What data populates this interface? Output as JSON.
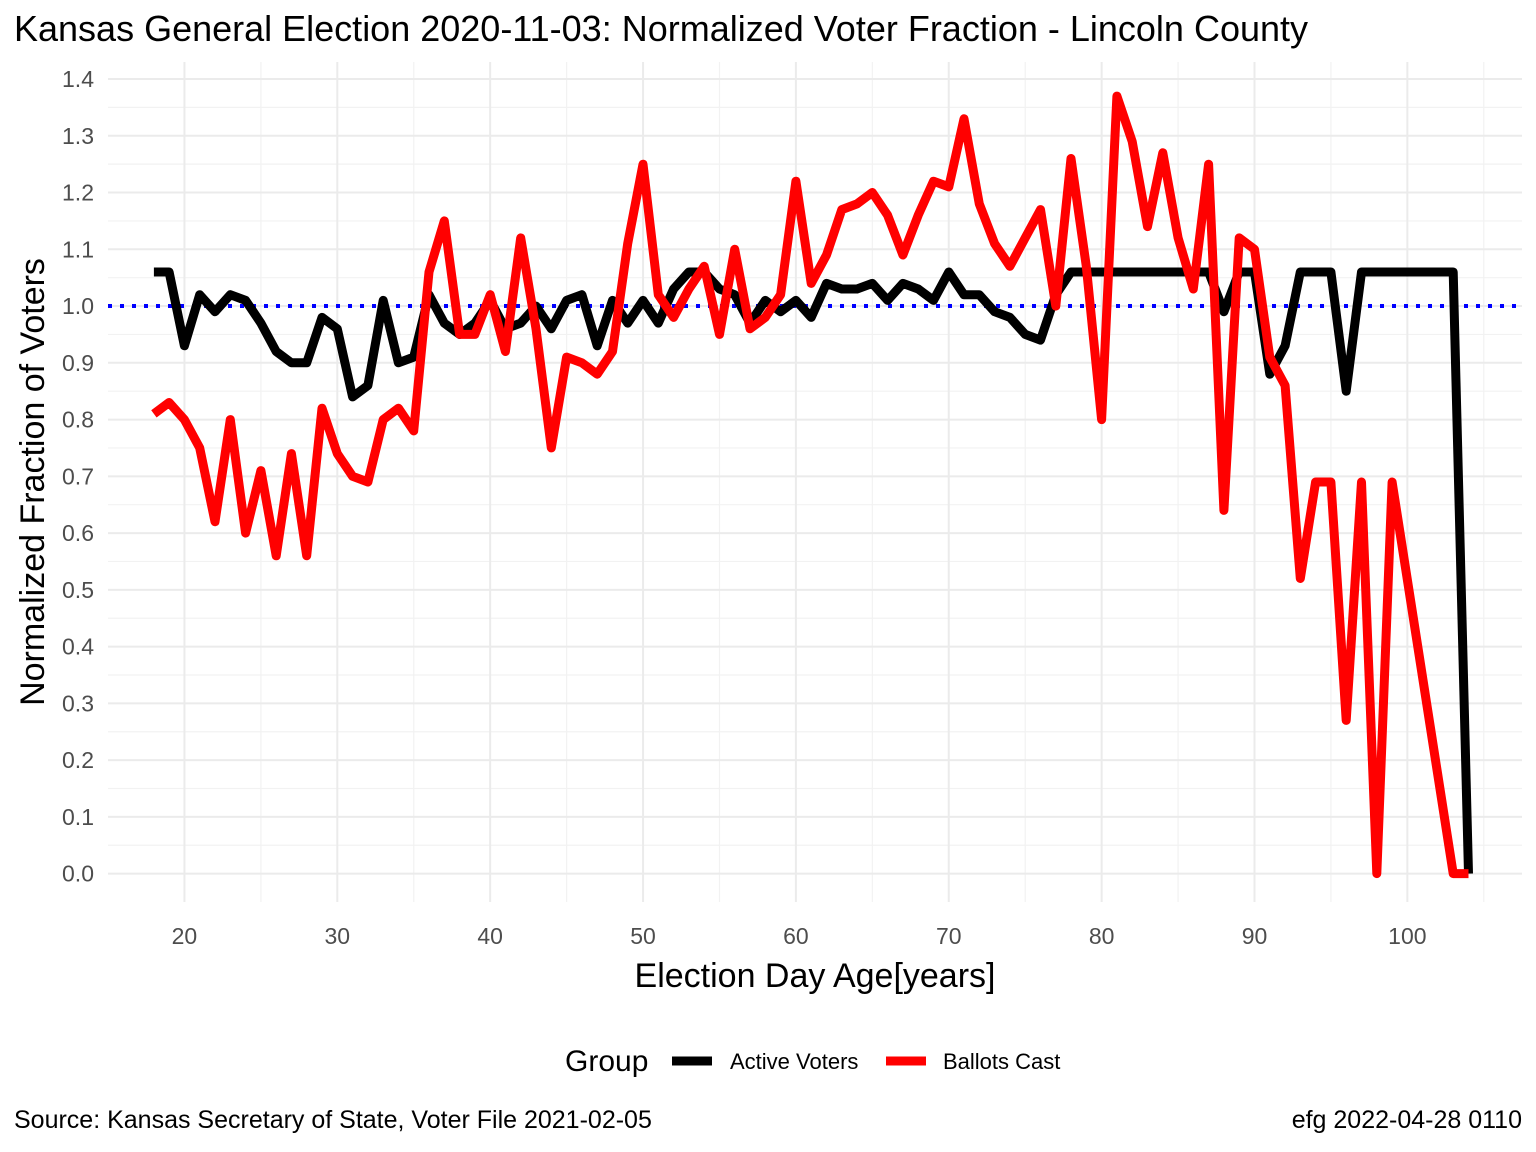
{
  "title": "Kansas General Election 2020-11-03:  Normalized Voter Fraction - Lincoln County",
  "caption_left": "Source:  Kansas Secretary of State, Voter File  2021-02-05",
  "caption_right": "efg 2022-04-28 0110",
  "chart_data": {
    "type": "line",
    "xlabel": "Election Day Age[years]",
    "ylabel": "Normalized Fraction of Voters",
    "xlim": [
      15,
      107.5
    ],
    "ylim": [
      -0.05,
      1.43
    ],
    "x_ticks": [
      20,
      30,
      40,
      50,
      60,
      70,
      80,
      90,
      100
    ],
    "y_ticks": [
      0.0,
      0.1,
      0.2,
      0.3,
      0.4,
      0.5,
      0.6,
      0.7,
      0.8,
      0.9,
      1.0,
      1.1,
      1.2,
      1.3,
      1.4
    ],
    "y_tick_labels": [
      "0.0",
      "0.1",
      "0.2",
      "0.3",
      "0.4",
      "0.5",
      "0.6",
      "0.7",
      "0.8",
      "0.9",
      "1.0",
      "1.1",
      "1.2",
      "1.3",
      "1.4"
    ],
    "grid": true,
    "reference_line": {
      "y": 1.0,
      "color": "#0000ff",
      "style": "dotted"
    },
    "legend": {
      "title": "Group",
      "position": "bottom"
    },
    "series": [
      {
        "name": "Active Voters",
        "color": "#000000",
        "x": [
          18,
          19,
          20,
          21,
          22,
          23,
          24,
          25,
          26,
          27,
          28,
          29,
          30,
          31,
          32,
          33,
          34,
          35,
          36,
          37,
          38,
          39,
          40,
          41,
          42,
          43,
          44,
          45,
          46,
          47,
          48,
          49,
          50,
          51,
          52,
          53,
          54,
          55,
          56,
          57,
          58,
          59,
          60,
          61,
          62,
          63,
          64,
          65,
          66,
          67,
          68,
          69,
          70,
          71,
          72,
          73,
          74,
          75,
          76,
          77,
          78,
          79,
          80,
          81,
          82,
          83,
          84,
          85,
          86,
          87,
          88,
          89,
          90,
          91,
          92,
          93,
          94,
          95,
          96,
          97,
          98,
          99,
          100,
          101,
          102,
          103,
          104
        ],
        "y": [
          1.06,
          1.06,
          0.93,
          1.02,
          0.99,
          1.02,
          1.01,
          0.97,
          0.92,
          0.9,
          0.9,
          0.98,
          0.96,
          0.84,
          0.86,
          1.01,
          0.9,
          0.91,
          1.02,
          0.97,
          0.95,
          0.97,
          1.01,
          0.96,
          0.97,
          1.0,
          0.96,
          1.01,
          1.02,
          0.93,
          1.01,
          0.97,
          1.01,
          0.97,
          1.03,
          1.06,
          1.06,
          1.03,
          1.02,
          0.97,
          1.01,
          0.99,
          1.01,
          0.98,
          1.04,
          1.03,
          1.03,
          1.04,
          1.01,
          1.04,
          1.03,
          1.01,
          1.06,
          1.02,
          1.02,
          0.99,
          0.98,
          0.95,
          0.94,
          1.02,
          1.06,
          1.06,
          1.06,
          1.06,
          1.06,
          1.06,
          1.06,
          1.06,
          1.06,
          1.06,
          0.99,
          1.06,
          1.06,
          0.88,
          0.93,
          1.06,
          1.06,
          1.06,
          0.85,
          1.06,
          1.06,
          1.06,
          1.06,
          1.06,
          1.06,
          1.06,
          0.0
        ]
      },
      {
        "name": "Ballots Cast",
        "color": "#ff0000",
        "x": [
          18,
          19,
          20,
          21,
          22,
          23,
          24,
          25,
          26,
          27,
          28,
          29,
          30,
          31,
          32,
          33,
          34,
          35,
          36,
          37,
          38,
          39,
          40,
          41,
          42,
          43,
          44,
          45,
          46,
          47,
          48,
          49,
          50,
          51,
          52,
          53,
          54,
          55,
          56,
          57,
          58,
          59,
          60,
          61,
          62,
          63,
          64,
          65,
          66,
          67,
          68,
          69,
          70,
          71,
          72,
          73,
          74,
          75,
          76,
          77,
          78,
          79,
          80,
          81,
          82,
          83,
          84,
          85,
          86,
          87,
          88,
          89,
          90,
          91,
          92,
          93,
          94,
          95,
          96,
          97,
          98,
          99,
          103,
          104
        ],
        "y": [
          0.81,
          0.83,
          0.8,
          0.75,
          0.62,
          0.8,
          0.6,
          0.71,
          0.56,
          0.74,
          0.56,
          0.82,
          0.74,
          0.7,
          0.69,
          0.8,
          0.82,
          0.78,
          1.06,
          1.15,
          0.95,
          0.95,
          1.02,
          0.92,
          1.12,
          0.96,
          0.75,
          0.91,
          0.9,
          0.88,
          0.92,
          1.11,
          1.25,
          1.02,
          0.98,
          1.03,
          1.07,
          0.95,
          1.1,
          0.96,
          0.98,
          1.02,
          1.22,
          1.04,
          1.09,
          1.17,
          1.18,
          1.2,
          1.16,
          1.09,
          1.16,
          1.22,
          1.21,
          1.33,
          1.18,
          1.11,
          1.07,
          1.12,
          1.17,
          1.0,
          1.26,
          1.07,
          0.8,
          1.37,
          1.29,
          1.14,
          1.27,
          1.12,
          1.03,
          1.25,
          0.64,
          1.12,
          1.1,
          0.91,
          0.86,
          0.52,
          0.69,
          0.69,
          0.27,
          0.69,
          0.0,
          0.69,
          0.0,
          0.0
        ]
      }
    ]
  }
}
